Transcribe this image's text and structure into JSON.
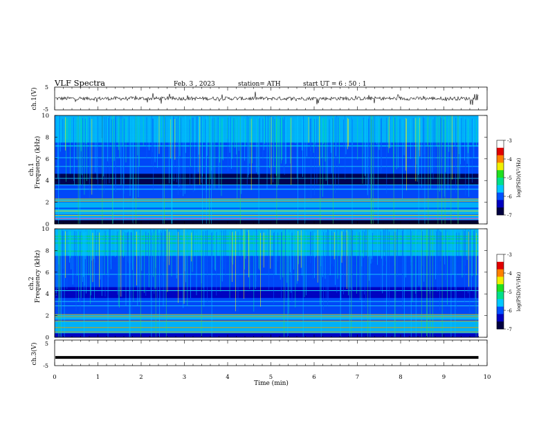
{
  "header": {
    "title": "VLF  Spectra",
    "date": "Feb. 3  , 2023",
    "station": "station= ATH",
    "start": "start  UT  =   6  : 50 : 1"
  },
  "chart_data": [
    {
      "type": "line",
      "name": "ch1-waveform",
      "ylabel": "ch.1(V)",
      "ylim": [
        -5,
        5
      ],
      "yticks": [
        "5",
        "-5"
      ],
      "xlim": [
        0,
        10
      ],
      "description_values": "dense waveform trace fluctuating near 0 V with spikes to about ±2 V"
    },
    {
      "type": "heatmap",
      "name": "ch1-spectrogram",
      "ylabel_top": "ch.1",
      "ylabel": "Frequency  (kHz)",
      "ylim": [
        0,
        10
      ],
      "yticks": [
        "0",
        "2",
        "4",
        "6",
        "8",
        "10"
      ],
      "xlim": [
        0,
        9.8
      ],
      "colorbar": {
        "label": "log(PSD)(V²/Hz)",
        "range": [
          -7,
          -3
        ],
        "ticks": [
          "-3",
          "-4",
          "-5",
          "-6",
          "-7"
        ],
        "colors": [
          "#000040",
          "#0000c0",
          "#0050ff",
          "#00c8ff",
          "#00e08a",
          "#20e020",
          "#f0f000",
          "#ff8000",
          "#e00000",
          "#ffffff"
        ]
      }
    },
    {
      "type": "heatmap",
      "name": "ch2-spectrogram",
      "ylabel_top": "ch.2",
      "ylabel": "Frequency  (kHz)",
      "ylim": [
        0,
        10
      ],
      "yticks": [
        "0",
        "2",
        "4",
        "6",
        "8",
        "10"
      ],
      "xlim": [
        0,
        9.8
      ],
      "colorbar": {
        "label": "log(PSD)(V²/Hz)",
        "range": [
          -7,
          -3
        ],
        "ticks": [
          "-3",
          "-4",
          "-5",
          "-6",
          "-7"
        ]
      }
    },
    {
      "type": "line",
      "name": "ch3-waveform",
      "ylabel": "ch.3(V)",
      "ylim": [
        -5,
        5
      ],
      "yticks": [
        "5",
        "-5"
      ],
      "xlim": [
        0,
        10
      ],
      "level": -1.8
    }
  ],
  "xaxis": {
    "label": "Time  (min)",
    "ticks": [
      "0",
      "1",
      "2",
      "3",
      "4",
      "5",
      "6",
      "7",
      "8",
      "9",
      "10"
    ]
  }
}
